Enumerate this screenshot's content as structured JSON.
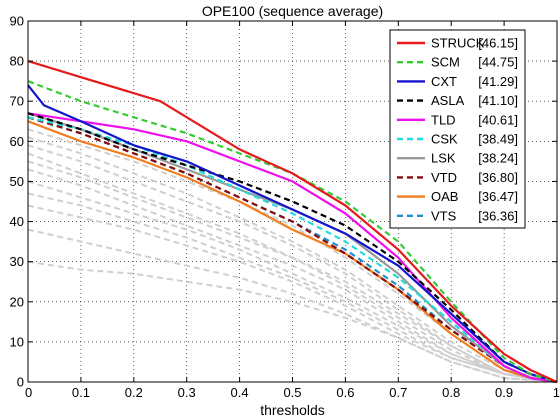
{
  "chart_data": {
    "type": "line",
    "title": "OPE100 (sequence average)",
    "xlabel": "thresholds",
    "ylabel": "",
    "xlim": [
      0,
      1
    ],
    "ylim": [
      0,
      90
    ],
    "xticks": [
      "0",
      "0.1",
      "0.2",
      "0.3",
      "0.4",
      "0.5",
      "0.6",
      "0.7",
      "0.8",
      "0.9",
      "1"
    ],
    "yticks": [
      "0",
      "10",
      "20",
      "30",
      "40",
      "50",
      "60",
      "70",
      "80",
      "90"
    ],
    "grid": true,
    "legend_position": "top-right",
    "series": [
      {
        "name": "STRUCK",
        "score": "[46.15]",
        "color": "#e41a1c",
        "dash": "solid",
        "x": [
          0,
          0.1,
          0.25,
          0.4,
          0.5,
          0.6,
          0.7,
          0.8,
          0.9,
          0.95,
          1
        ],
        "values": [
          80,
          76,
          70,
          58,
          52,
          44,
          33,
          19,
          7,
          3,
          0
        ]
      },
      {
        "name": "SCM",
        "score": "[44.75]",
        "color": "#33cc33",
        "dash": "dashed",
        "x": [
          0,
          0.1,
          0.2,
          0.3,
          0.4,
          0.5,
          0.6,
          0.7,
          0.8,
          0.9,
          0.95,
          1
        ],
        "values": [
          75,
          70,
          66,
          62,
          57,
          52,
          45,
          35,
          20,
          6,
          2,
          0
        ]
      },
      {
        "name": "CXT",
        "score": "[41.29]",
        "color": "#1414cc",
        "dash": "solid",
        "x": [
          0,
          0.03,
          0.1,
          0.2,
          0.3,
          0.4,
          0.5,
          0.6,
          0.7,
          0.8,
          0.9,
          0.95,
          1
        ],
        "values": [
          74,
          69,
          65,
          59,
          55,
          49,
          43,
          37,
          29,
          17,
          5,
          2,
          0
        ]
      },
      {
        "name": "ASLA",
        "score": "[41.10]",
        "color": "#000000",
        "dash": "dashed",
        "x": [
          0,
          0.1,
          0.2,
          0.3,
          0.4,
          0.5,
          0.6,
          0.7,
          0.8,
          0.9,
          0.95,
          1
        ],
        "values": [
          67,
          63,
          58,
          54,
          50,
          45,
          39,
          30,
          18,
          5,
          2,
          0
        ]
      },
      {
        "name": "TLD",
        "score": "[40.61]",
        "color": "#ee11ee",
        "dash": "solid",
        "x": [
          0,
          0.1,
          0.2,
          0.3,
          0.4,
          0.5,
          0.6,
          0.7,
          0.8,
          0.9,
          0.95,
          1
        ],
        "values": [
          67,
          65,
          63,
          60,
          55,
          50,
          42,
          31,
          16,
          4,
          1,
          0
        ]
      },
      {
        "name": "CSK",
        "score": "[38.49]",
        "color": "#22dddd",
        "dash": "dashed",
        "x": [
          0,
          0.1,
          0.2,
          0.3,
          0.4,
          0.5,
          0.6,
          0.7,
          0.8,
          0.9,
          0.95,
          1
        ],
        "values": [
          66,
          63,
          59,
          54,
          48,
          42,
          35,
          26,
          15,
          4,
          1,
          0
        ]
      },
      {
        "name": "LSK",
        "score": "[38.24]",
        "color": "#999999",
        "dash": "solid",
        "x": [
          0,
          0.1,
          0.2,
          0.3,
          0.4,
          0.5,
          0.6,
          0.7,
          0.8,
          0.9,
          0.95,
          1
        ],
        "values": [
          67,
          63,
          58,
          53,
          48,
          43,
          37,
          27,
          14,
          4,
          1,
          0
        ]
      },
      {
        "name": "VTD",
        "score": "[36.80]",
        "color": "#8b0a0a",
        "dash": "dashed",
        "x": [
          0,
          0.1,
          0.2,
          0.3,
          0.4,
          0.5,
          0.6,
          0.7,
          0.8,
          0.9,
          0.95,
          1
        ],
        "values": [
          66,
          62,
          57,
          52,
          46,
          40,
          32,
          23,
          13,
          4,
          1,
          0
        ]
      },
      {
        "name": "OAB",
        "score": "[36.47]",
        "color": "#f07d1e",
        "dash": "solid",
        "x": [
          0,
          0.1,
          0.2,
          0.3,
          0.4,
          0.5,
          0.6,
          0.7,
          0.8,
          0.9,
          0.95,
          1
        ],
        "values": [
          65,
          60,
          56,
          51,
          45,
          38,
          32,
          23,
          12,
          3,
          1,
          0
        ]
      },
      {
        "name": "VTS",
        "score": "[36.36]",
        "color": "#1e90d0",
        "dash": "dashed",
        "x": [
          0,
          0.1,
          0.2,
          0.3,
          0.4,
          0.5,
          0.6,
          0.7,
          0.8,
          0.9,
          0.95,
          1
        ],
        "values": [
          66,
          62,
          57,
          52,
          46,
          40,
          33,
          24,
          13,
          4,
          1,
          0
        ]
      }
    ],
    "background_series_color": "#cfcfcf",
    "background_series": [
      {
        "x": [
          0,
          0.1,
          0.2,
          0.3,
          0.4,
          0.5,
          0.6,
          0.7,
          0.8,
          0.9,
          1
        ],
        "values": [
          63,
          59,
          55,
          50,
          45,
          39,
          31,
          22,
          12,
          3,
          0
        ]
      },
      {
        "x": [
          0,
          0.1,
          0.2,
          0.3,
          0.4,
          0.5,
          0.6,
          0.7,
          0.8,
          0.9,
          1
        ],
        "values": [
          61,
          57,
          52,
          47,
          41,
          35,
          28,
          19,
          10,
          3,
          0
        ]
      },
      {
        "x": [
          0,
          0.1,
          0.2,
          0.3,
          0.4,
          0.5,
          0.6,
          0.7,
          0.8,
          0.9,
          1
        ],
        "values": [
          59,
          55,
          50,
          45,
          40,
          34,
          27,
          18,
          9,
          2,
          0
        ]
      },
      {
        "x": [
          0,
          0.1,
          0.2,
          0.3,
          0.4,
          0.5,
          0.6,
          0.7,
          0.8,
          0.9,
          1
        ],
        "values": [
          57,
          52,
          47,
          42,
          37,
          31,
          25,
          17,
          9,
          2,
          0
        ]
      },
      {
        "x": [
          0,
          0.1,
          0.2,
          0.3,
          0.4,
          0.5,
          0.6,
          0.7,
          0.8,
          0.9,
          1
        ],
        "values": [
          55,
          51,
          46,
          41,
          36,
          31,
          24,
          16,
          8,
          2,
          0
        ]
      },
      {
        "x": [
          0,
          0.1,
          0.2,
          0.3,
          0.4,
          0.5,
          0.6,
          0.7,
          0.8,
          0.9,
          1
        ],
        "values": [
          53,
          49,
          44,
          39,
          34,
          29,
          23,
          15,
          7,
          2,
          0
        ]
      },
      {
        "x": [
          0,
          0.1,
          0.2,
          0.3,
          0.4,
          0.5,
          0.6,
          0.7,
          0.8,
          0.9,
          1
        ],
        "values": [
          50,
          46,
          42,
          38,
          33,
          27,
          21,
          14,
          7,
          2,
          0
        ]
      },
      {
        "x": [
          0,
          0.1,
          0.2,
          0.3,
          0.4,
          0.5,
          0.6,
          0.7,
          0.8,
          0.9,
          1
        ],
        "values": [
          47,
          44,
          40,
          36,
          31,
          26,
          20,
          13,
          6,
          2,
          0
        ]
      },
      {
        "x": [
          0,
          0.1,
          0.2,
          0.3,
          0.4,
          0.5,
          0.6,
          0.7,
          0.8,
          0.9,
          1
        ],
        "values": [
          44,
          41,
          38,
          34,
          30,
          25,
          19,
          12,
          6,
          2,
          0
        ]
      },
      {
        "x": [
          0,
          0.1,
          0.2,
          0.3,
          0.4,
          0.5,
          0.6,
          0.7,
          0.8,
          0.9,
          1
        ],
        "values": [
          38,
          35,
          32,
          29,
          26,
          22,
          17,
          11,
          5,
          1,
          0
        ]
      },
      {
        "x": [
          0,
          0.1,
          0.2,
          0.3,
          0.4,
          0.5,
          0.6,
          0.7,
          0.8,
          0.9,
          1
        ],
        "values": [
          30,
          28,
          27,
          25,
          23,
          20,
          16,
          11,
          5,
          1,
          0
        ]
      }
    ]
  }
}
